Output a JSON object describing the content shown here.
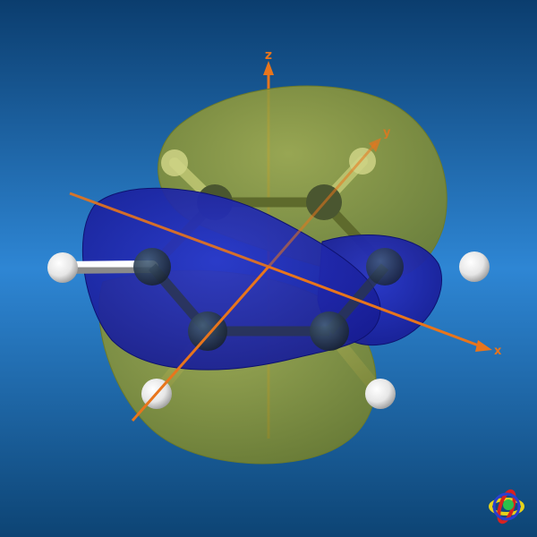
{
  "viewer": {
    "name": "molecular-orbital-viewer",
    "background_top": "#0b3d6e",
    "background_mid": "#2e86d4",
    "background_bottom": "#0d4474"
  },
  "axes": {
    "color": "#e8751c",
    "z_label": "z",
    "x_label": "x",
    "y_label": "y"
  },
  "molecule": {
    "name": "benzene",
    "carbon_color": "#1e2a3a",
    "hydrogen_color": "#f2f2f2",
    "bond_color": "#c8c8c8"
  },
  "orbital": {
    "positive_lobe_color": "#8d9a3a",
    "negative_lobe_color": "#1a1fa8"
  },
  "widget": {
    "name": "orientation-gizmo"
  }
}
